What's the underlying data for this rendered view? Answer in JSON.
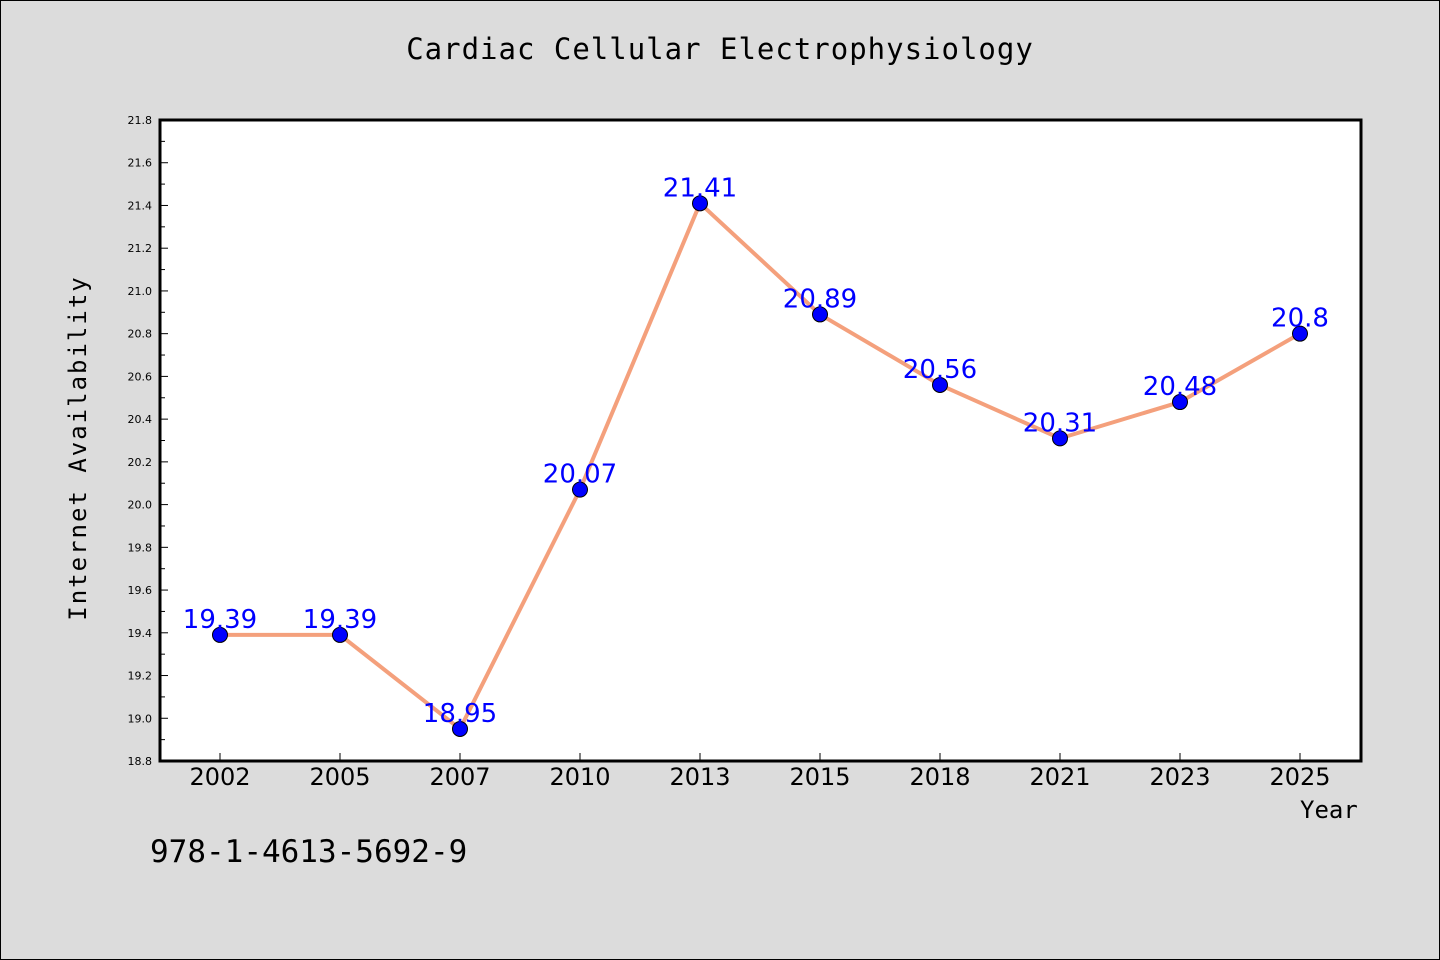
{
  "title": "Cardiac Cellular Electrophysiology",
  "footnote": "978-1-4613-5692-9",
  "colors": {
    "background": "#dcdcdc",
    "line": "#f4a07c",
    "marker": "#0000ff",
    "label": "#0000ff"
  },
  "chart_data": {
    "type": "line",
    "title": "Cardiac Cellular Electrophysiology",
    "xlabel": "Year",
    "ylabel": "Internet Availability",
    "categories": [
      "2002",
      "2005",
      "2007",
      "2010",
      "2013",
      "2015",
      "2018",
      "2021",
      "2023",
      "2025"
    ],
    "series": [
      {
        "values": [
          19.39,
          19.39,
          18.95,
          20.07,
          21.41,
          20.89,
          20.56,
          20.31,
          20.48,
          20.8
        ]
      }
    ],
    "data_labels": [
      "19.39",
      "19.39",
      "18.95",
      "20.07",
      "21.41",
      "20.89",
      "20.56",
      "20.31",
      "20.48",
      "20.8"
    ],
    "ylim": [
      18.8,
      21.8
    ],
    "yticks": [
      "18.8",
      "19.0",
      "19.2",
      "19.4",
      "19.6",
      "19.8",
      "20.0",
      "20.2",
      "20.4",
      "20.6",
      "20.8",
      "21.0",
      "21.2",
      "21.4",
      "21.6",
      "21.8"
    ],
    "grid": false,
    "legend": "none"
  }
}
